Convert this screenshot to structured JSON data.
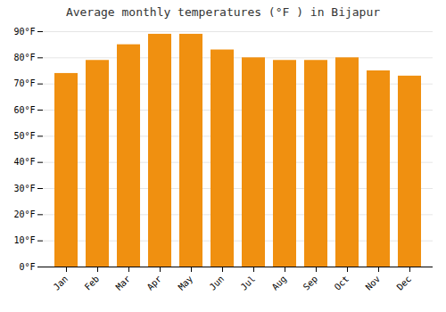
{
  "chart_data": {
    "type": "bar",
    "title": "Average monthly temperatures (°F ) in Bijapur",
    "categories": [
      "Jan",
      "Feb",
      "Mar",
      "Apr",
      "May",
      "Jun",
      "Jul",
      "Aug",
      "Sep",
      "Oct",
      "Nov",
      "Dec"
    ],
    "values": [
      74,
      79,
      85,
      89,
      89,
      83,
      80,
      79,
      79,
      80,
      75,
      73
    ],
    "color": "#F09010",
    "ylim": [
      0,
      90
    ],
    "yticks": [
      {
        "value": 0,
        "label": "0°F"
      },
      {
        "value": 10,
        "label": "10°F"
      },
      {
        "value": 20,
        "label": "20°F"
      },
      {
        "value": 30,
        "label": "30°F"
      },
      {
        "value": 40,
        "label": "40°F"
      },
      {
        "value": 50,
        "label": "50°F"
      },
      {
        "value": 60,
        "label": "60°F"
      },
      {
        "value": 70,
        "label": "70°F"
      },
      {
        "value": 80,
        "label": "80°F"
      },
      {
        "value": 90,
        "label": "90°F"
      }
    ],
    "grid": true
  }
}
